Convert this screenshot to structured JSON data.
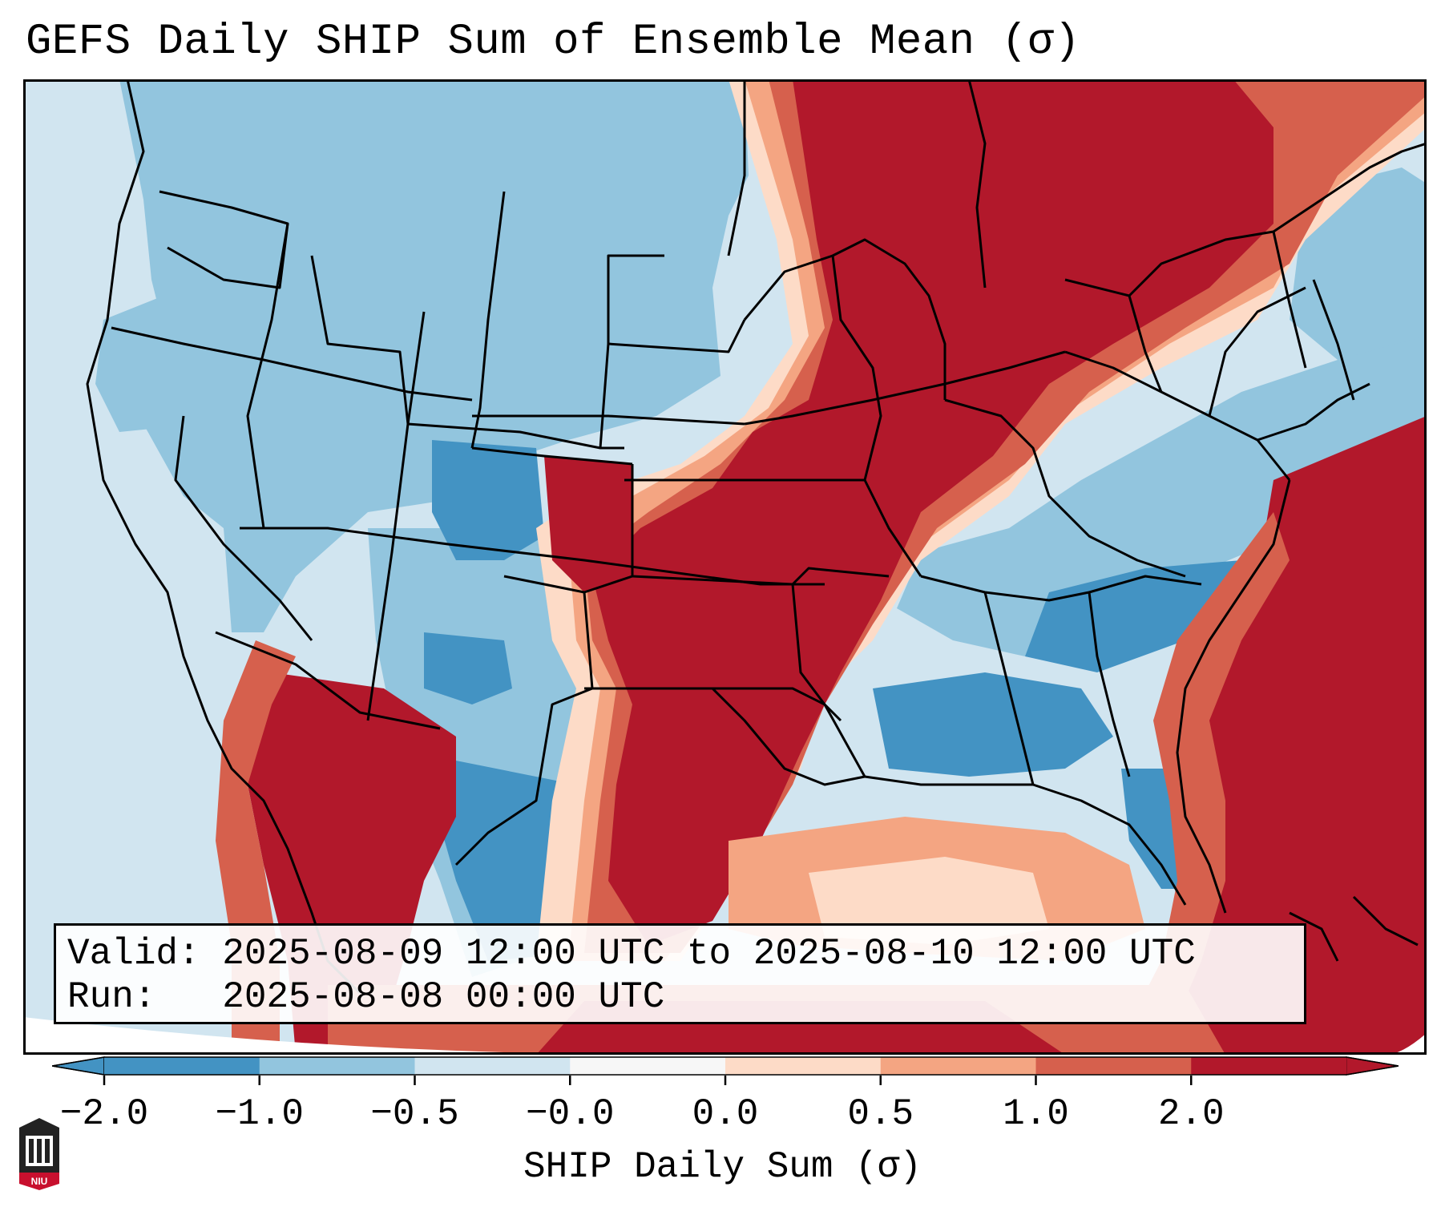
{
  "title": "GEFS Daily SHIP Sum of Ensemble Mean (σ)",
  "info_box": {
    "valid_line": "Valid: 2025-08-09 12:00 UTC to 2025-08-10 12:00 UTC",
    "run_line": "Run:   2025-08-08 00:00 UTC"
  },
  "colorbar": {
    "label": "SHIP Daily Sum (σ)",
    "tick_labels": [
      "−2.0",
      "−1.0",
      "−0.5",
      "−0.0",
      "0.0",
      "0.5",
      "1.0",
      "2.0"
    ],
    "colors": [
      "#4393c3",
      "#92c5de",
      "#d1e5f0",
      "#f7f7f7",
      "#fddbc7",
      "#f4a582",
      "#d6604d",
      "#b2182b"
    ],
    "extend": "both"
  },
  "map_colors": {
    "strong_negative": "#4393c3",
    "negative": "#92c5de",
    "weak_negative": "#d1e5f0",
    "weak_positive": "#fddbc7",
    "positive": "#f4a582",
    "moderate_positive": "#d6604d",
    "strong_positive": "#b2182b"
  },
  "logo": {
    "text": "NIU",
    "color": "#c8102e"
  }
}
